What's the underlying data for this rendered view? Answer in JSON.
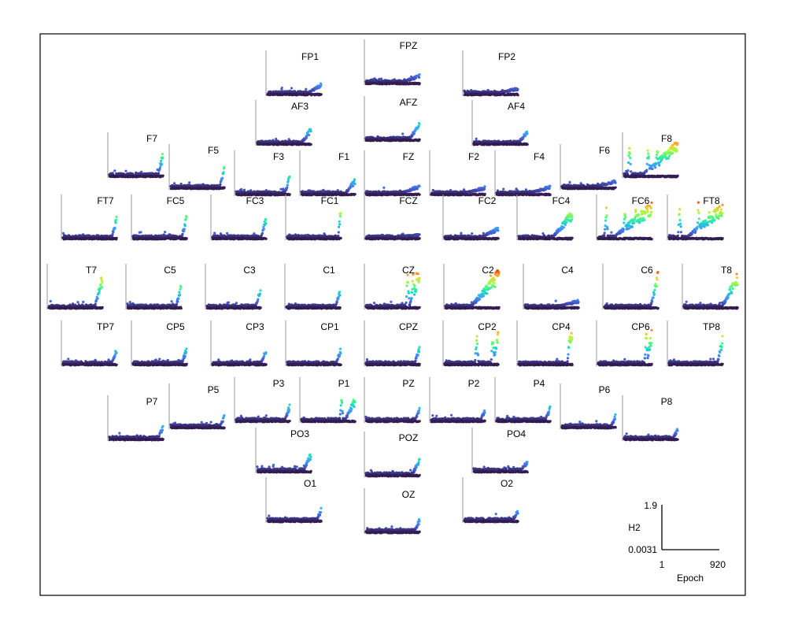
{
  "chart_data": {
    "type": "scatter",
    "layout": "topographic-small-multiples",
    "x_axis": {
      "label": "Epoch",
      "min_label": "1",
      "max_label": "920",
      "range": [
        1,
        920
      ]
    },
    "y_axis": {
      "label": "H2",
      "min_label": "0.0031",
      "max_label": "1.9",
      "range": [
        0.0031,
        1.9
      ]
    },
    "colormap": "turbo",
    "channels": [
      {
        "name": "FP1",
        "peak": 0.28,
        "spikes": [],
        "ramp": 0.7
      },
      {
        "name": "FPZ",
        "peak": 0.22,
        "spikes": [],
        "ramp": 0.6
      },
      {
        "name": "FP2",
        "peak": 0.18,
        "spikes": [],
        "ramp": 0.5
      },
      {
        "name": "AF3",
        "peak": 0.42,
        "spikes": [],
        "ramp": 0.8
      },
      {
        "name": "AFZ",
        "peak": 0.48,
        "spikes": [],
        "ramp": 0.8
      },
      {
        "name": "AF4",
        "peak": 0.35,
        "spikes": [],
        "ramp": 0.8
      },
      {
        "name": "F7",
        "peak": 0.62,
        "spikes": [],
        "ramp": 0.9
      },
      {
        "name": "F5",
        "peak": 0.55,
        "spikes": [],
        "ramp": 0.9
      },
      {
        "name": "F3",
        "peak": 0.5,
        "spikes": [],
        "ramp": 0.9
      },
      {
        "name": "F1",
        "peak": 0.4,
        "spikes": [],
        "ramp": 0.8
      },
      {
        "name": "FZ",
        "peak": 0.25,
        "spikes": [],
        "ramp": 0.6
      },
      {
        "name": "F2",
        "peak": 0.2,
        "spikes": [],
        "ramp": 0.5
      },
      {
        "name": "F4",
        "peak": 0.22,
        "spikes": [],
        "ramp": 0.5
      },
      {
        "name": "F6",
        "peak": 0.2,
        "spikes": [],
        "ramp": 0.5
      },
      {
        "name": "F8",
        "peak": 0.88,
        "spikes": [
          0.1,
          0.45,
          0.62,
          0.85
        ],
        "ramp": 0.3
      },
      {
        "name": "FT7",
        "peak": 0.55,
        "spikes": [],
        "ramp": 0.9
      },
      {
        "name": "FC5",
        "peak": 0.62,
        "spikes": [],
        "ramp": 0.9
      },
      {
        "name": "FC3",
        "peak": 0.58,
        "spikes": [],
        "ramp": 0.9
      },
      {
        "name": "FC1",
        "peak": 0.95,
        "spikes": [],
        "ramp": 0.95
      },
      {
        "name": "FCZ",
        "peak": 0.12,
        "spikes": [],
        "ramp": 0.3
      },
      {
        "name": "FC2",
        "peak": 0.28,
        "spikes": [],
        "ramp": 0.6
      },
      {
        "name": "FC4",
        "peak": 0.72,
        "spikes": [],
        "ramp": 0.6
      },
      {
        "name": "FC6",
        "peak": 0.92,
        "spikes": [
          0.15,
          0.5,
          0.7,
          0.9
        ],
        "ramp": 0.25
      },
      {
        "name": "FT8",
        "peak": 0.9,
        "spikes": [
          0.2,
          0.55,
          0.75,
          0.95
        ],
        "ramp": 0.3
      },
      {
        "name": "T7",
        "peak": 0.85,
        "spikes": [],
        "ramp": 0.85
      },
      {
        "name": "C5",
        "peak": 0.62,
        "spikes": [],
        "ramp": 0.9
      },
      {
        "name": "C3",
        "peak": 0.58,
        "spikes": [],
        "ramp": 0.9
      },
      {
        "name": "C1",
        "peak": 0.45,
        "spikes": [],
        "ramp": 0.9
      },
      {
        "name": "CZ",
        "peak": 1.0,
        "spikes": [
          0.78,
          0.88,
          0.95
        ],
        "ramp": 0.8
      },
      {
        "name": "C2",
        "peak": 0.98,
        "spikes": [
          0.85,
          0.95
        ],
        "ramp": 0.45
      },
      {
        "name": "C4",
        "peak": 0.2,
        "spikes": [],
        "ramp": 0.5
      },
      {
        "name": "C6",
        "peak": 0.9,
        "spikes": [],
        "ramp": 0.85
      },
      {
        "name": "T8",
        "peak": 0.92,
        "spikes": [],
        "ramp": 0.7
      },
      {
        "name": "TP7",
        "peak": 0.42,
        "spikes": [],
        "ramp": 0.9
      },
      {
        "name": "CP5",
        "peak": 0.45,
        "spikes": [],
        "ramp": 0.9
      },
      {
        "name": "CP3",
        "peak": 0.42,
        "spikes": [],
        "ramp": 0.9
      },
      {
        "name": "CP1",
        "peak": 0.42,
        "spikes": [],
        "ramp": 0.9
      },
      {
        "name": "CPZ",
        "peak": 0.48,
        "spikes": [],
        "ramp": 0.9
      },
      {
        "name": "CP2",
        "peak": 0.9,
        "spikes": [
          0.6,
          0.9
        ],
        "ramp": 0.9
      },
      {
        "name": "CP4",
        "peak": 0.95,
        "spikes": [
          0.95
        ],
        "ramp": 0.9
      },
      {
        "name": "CP6",
        "peak": 0.88,
        "spikes": [
          0.9
        ],
        "ramp": 0.9
      },
      {
        "name": "TP8",
        "peak": 0.75,
        "spikes": [],
        "ramp": 0.9
      },
      {
        "name": "P7",
        "peak": 0.38,
        "spikes": [],
        "ramp": 0.9
      },
      {
        "name": "P5",
        "peak": 0.32,
        "spikes": [],
        "ramp": 0.9
      },
      {
        "name": "P3",
        "peak": 0.42,
        "spikes": [],
        "ramp": 0.9
      },
      {
        "name": "P1",
        "peak": 0.62,
        "spikes": [
          0.75
        ],
        "ramp": 0.8
      },
      {
        "name": "PZ",
        "peak": 0.35,
        "spikes": [],
        "ramp": 0.9
      },
      {
        "name": "P2",
        "peak": 0.3,
        "spikes": [],
        "ramp": 0.9
      },
      {
        "name": "P4",
        "peak": 0.4,
        "spikes": [],
        "ramp": 0.9
      },
      {
        "name": "P6",
        "peak": 0.32,
        "spikes": [],
        "ramp": 0.9
      },
      {
        "name": "P8",
        "peak": 0.3,
        "spikes": [],
        "ramp": 0.9
      },
      {
        "name": "PO3",
        "peak": 0.5,
        "spikes": [],
        "ramp": 0.85
      },
      {
        "name": "POZ",
        "peak": 0.45,
        "spikes": [],
        "ramp": 0.85
      },
      {
        "name": "PO4",
        "peak": 0.3,
        "spikes": [],
        "ramp": 0.85
      },
      {
        "name": "O1",
        "peak": 0.32,
        "spikes": [],
        "ramp": 0.9
      },
      {
        "name": "OZ",
        "peak": 0.35,
        "spikes": [],
        "ramp": 0.9
      },
      {
        "name": "O2",
        "peak": 0.3,
        "spikes": [],
        "ramp": 0.9
      }
    ]
  }
}
